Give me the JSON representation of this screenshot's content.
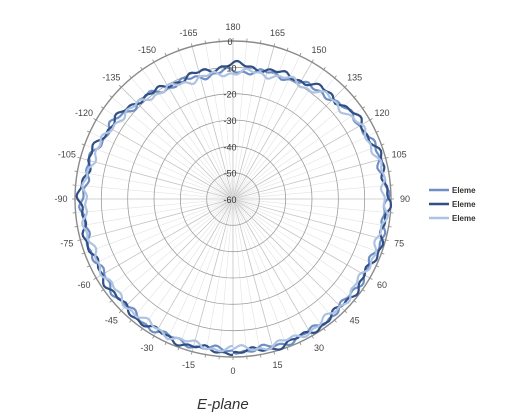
{
  "chart_data": {
    "type": "line",
    "projection": "polar",
    "xlabel": "E-plane",
    "ylabel": "",
    "angle_ticks": [
      0,
      15,
      30,
      45,
      60,
      75,
      90,
      105,
      120,
      135,
      150,
      165,
      180,
      -165,
      -150,
      -135,
      -120,
      -105,
      -90,
      -75,
      -60,
      -45,
      -30,
      -15
    ],
    "angle_direction": "counterclockwise",
    "angle_zero_location": "bottom",
    "radial_ticks": [
      0,
      -10,
      -20,
      -30,
      -40,
      -50,
      -60
    ],
    "rlim": [
      -60,
      0
    ],
    "grid": true,
    "legend_position": "right",
    "series": [
      {
        "name": "Eleme",
        "color": "#6f8fc4",
        "x": [
          0,
          15,
          30,
          45,
          60,
          75,
          90,
          105,
          120,
          135,
          150,
          165,
          180,
          -165,
          -150,
          -135,
          -120,
          -105,
          -90,
          -75,
          -60,
          -45,
          -30,
          -15
        ],
        "values": [
          -2.5,
          -2.0,
          -1.8,
          -2.2,
          -2.5,
          -2.0,
          -1.8,
          -2.5,
          -4.0,
          -6.5,
          -9.0,
          -10.5,
          -11.5,
          -12.0,
          -11.0,
          -8.5,
          -6.0,
          -4.0,
          -3.0,
          -2.8,
          -3.0,
          -2.5,
          -2.2,
          -2.5
        ]
      },
      {
        "name": "Eleme",
        "color": "#2f4f86",
        "x": [
          0,
          15,
          30,
          45,
          60,
          75,
          90,
          105,
          120,
          135,
          150,
          165,
          180,
          -165,
          -150,
          -135,
          -120,
          -105,
          -90,
          -75,
          -60,
          -45,
          -30,
          -15
        ],
        "values": [
          -2.0,
          -1.5,
          -1.5,
          -2.0,
          -2.0,
          -1.5,
          -1.2,
          -2.0,
          -3.5,
          -5.5,
          -8.0,
          -9.5,
          -9.0,
          -10.5,
          -10.5,
          -8.0,
          -5.5,
          -3.5,
          -2.0,
          -2.5,
          -2.5,
          -2.0,
          -2.0,
          -2.0
        ]
      },
      {
        "name": "Eleme",
        "color": "#aec3e2",
        "x": [
          0,
          15,
          30,
          45,
          60,
          75,
          90,
          105,
          120,
          135,
          150,
          165,
          180,
          -165,
          -150,
          -135,
          -120,
          -105,
          -90,
          -75,
          -60,
          -45,
          -30,
          -15
        ],
        "values": [
          -3.0,
          -2.5,
          -2.2,
          -2.5,
          -3.0,
          -2.5,
          -2.2,
          -3.0,
          -4.5,
          -7.0,
          -9.5,
          -11.0,
          -12.0,
          -12.5,
          -11.5,
          -9.0,
          -6.5,
          -4.5,
          -3.5,
          -3.2,
          -3.5,
          -3.0,
          -2.8,
          -3.0
        ]
      }
    ]
  }
}
